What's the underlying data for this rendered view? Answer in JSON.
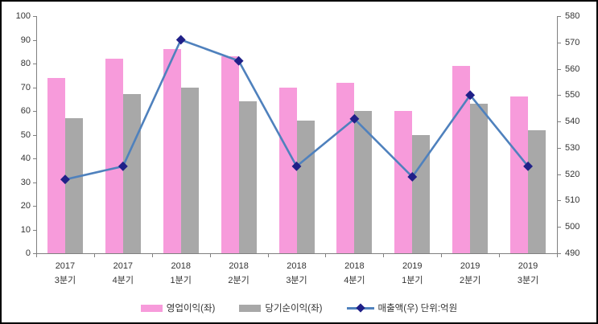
{
  "chart_data": {
    "type": "combo-bar-line",
    "categories": [
      {
        "line1": "2017",
        "line2": "3분기"
      },
      {
        "line1": "2017",
        "line2": "4분기"
      },
      {
        "line1": "2018",
        "line2": "1분기"
      },
      {
        "line1": "2018",
        "line2": "2분기"
      },
      {
        "line1": "2018",
        "line2": "3분기"
      },
      {
        "line1": "2018",
        "line2": "4분기"
      },
      {
        "line1": "2019",
        "line2": "1분기"
      },
      {
        "line1": "2019",
        "line2": "2분기"
      },
      {
        "line1": "2019",
        "line2": "3분기"
      }
    ],
    "series": [
      {
        "name": "영업이익(좌)",
        "type": "bar",
        "axis": "left",
        "color": "#F79BDB",
        "values": [
          74,
          82,
          86,
          83,
          70,
          72,
          60,
          79,
          66
        ]
      },
      {
        "name": "당기순이익(좌)",
        "type": "bar",
        "axis": "left",
        "color": "#A8A8A8",
        "values": [
          57,
          67,
          70,
          64,
          56,
          60,
          50,
          63,
          52
        ]
      },
      {
        "name": "매출액(우) 단위:억원",
        "type": "line",
        "axis": "right",
        "color": "#4F81BD",
        "marker_color": "#202088",
        "values": [
          518,
          523,
          571,
          563,
          523,
          541,
          519,
          550,
          523
        ]
      }
    ],
    "left_axis": {
      "min": 0,
      "max": 100,
      "step": 10,
      "ticks": [
        "0",
        "10",
        "20",
        "30",
        "40",
        "50",
        "60",
        "70",
        "80",
        "90",
        "100"
      ]
    },
    "right_axis": {
      "min": 490,
      "max": 580,
      "step": 10,
      "ticks": [
        "490",
        "500",
        "510",
        "520",
        "530",
        "540",
        "550",
        "560",
        "570",
        "580"
      ]
    },
    "legend_position": "bottom",
    "grid": "off"
  },
  "colors": {
    "axis": "#808080",
    "text": "#333333",
    "background": "#ffffff",
    "border": "#000000"
  }
}
